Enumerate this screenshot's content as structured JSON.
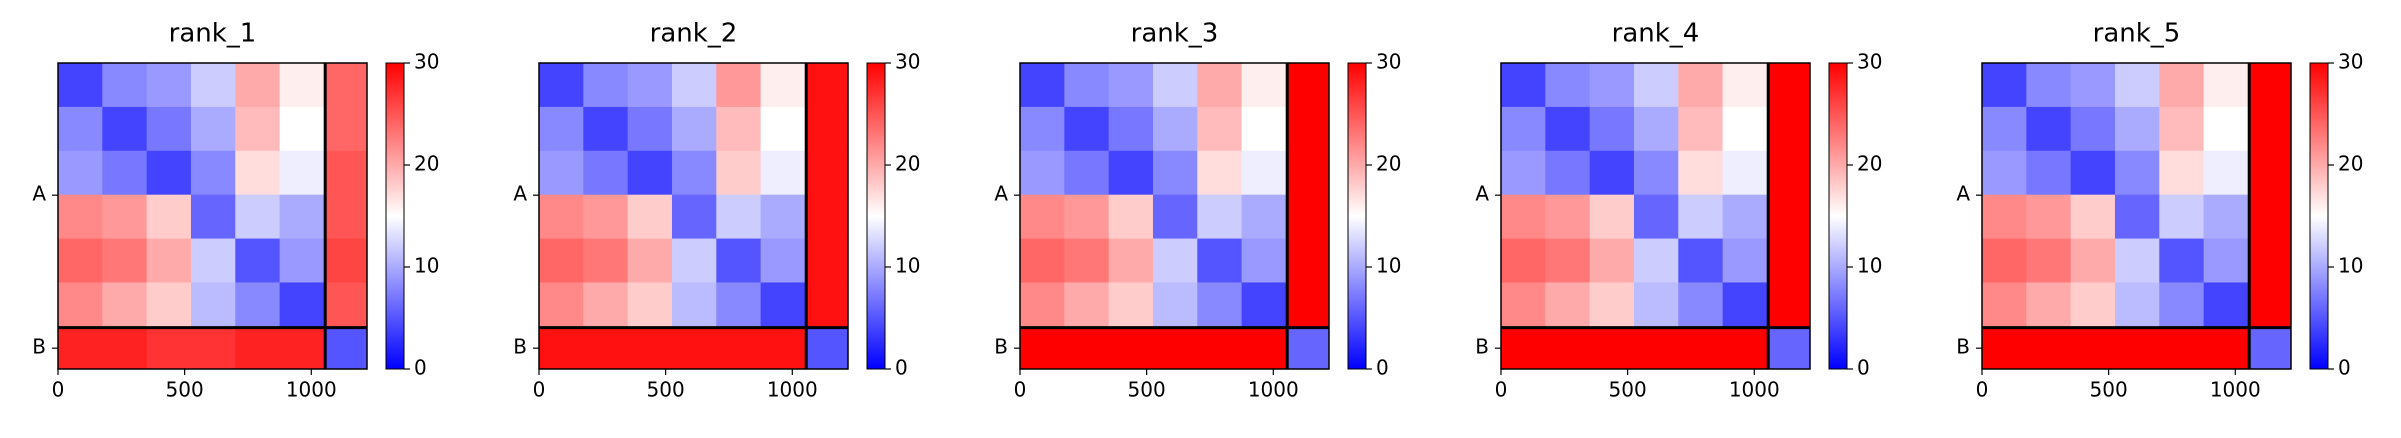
{
  "chart_data": [
    {
      "type": "heatmap",
      "title": "rank_1",
      "x_edges": [
        0,
        175,
        350,
        525,
        700,
        875,
        1055,
        1220
      ],
      "y_edges": [
        0,
        175,
        350,
        525,
        700,
        875,
        1055,
        1220
      ],
      "z": [
        [
          4,
          8,
          9,
          12,
          20,
          16,
          24
        ],
        [
          8,
          4,
          7,
          10,
          19,
          15,
          24
        ],
        [
          9,
          7,
          4,
          8,
          17,
          14,
          25
        ],
        [
          22,
          21,
          18,
          6,
          12,
          10,
          25
        ],
        [
          24,
          23,
          20,
          12,
          5,
          9,
          26
        ],
        [
          22,
          20,
          18,
          11,
          8,
          4,
          25
        ],
        [
          28,
          28,
          27,
          27,
          28,
          28,
          5
        ]
      ],
      "xlim": [
        0,
        1220
      ],
      "ylim": [
        1220,
        0
      ],
      "xticks": [
        0,
        500,
        1000
      ],
      "yticks": [
        {
          "value": 527,
          "label": "A"
        },
        {
          "value": 1137,
          "label": "B"
        }
      ],
      "chain_boundaries": [
        1055
      ],
      "colormap": "bwr",
      "clim": [
        0,
        30
      ],
      "cticks": [
        0,
        10,
        20,
        30
      ]
    },
    {
      "type": "heatmap",
      "title": "rank_2",
      "x_edges": [
        0,
        175,
        350,
        525,
        700,
        875,
        1055,
        1220
      ],
      "y_edges": [
        0,
        175,
        350,
        525,
        700,
        875,
        1055,
        1220
      ],
      "z": [
        [
          4,
          8,
          9,
          12,
          21,
          16,
          29
        ],
        [
          8,
          4,
          7,
          10,
          19,
          15,
          29
        ],
        [
          9,
          7,
          4,
          8,
          18,
          14,
          29
        ],
        [
          22,
          21,
          18,
          6,
          12,
          10,
          29
        ],
        [
          24,
          23,
          20,
          12,
          5,
          9,
          29
        ],
        [
          22,
          20,
          18,
          11,
          8,
          4,
          29
        ],
        [
          29,
          29,
          29,
          29,
          29,
          29,
          5
        ]
      ],
      "xlim": [
        0,
        1220
      ],
      "ylim": [
        1220,
        0
      ],
      "xticks": [
        0,
        500,
        1000
      ],
      "yticks": [
        {
          "value": 527,
          "label": "A"
        },
        {
          "value": 1137,
          "label": "B"
        }
      ],
      "chain_boundaries": [
        1055
      ],
      "colormap": "bwr",
      "clim": [
        0,
        30
      ],
      "cticks": [
        0,
        10,
        20,
        30
      ]
    },
    {
      "type": "heatmap",
      "title": "rank_3",
      "x_edges": [
        0,
        175,
        350,
        525,
        700,
        875,
        1055,
        1220
      ],
      "y_edges": [
        0,
        175,
        350,
        525,
        700,
        875,
        1055,
        1220
      ],
      "z": [
        [
          4,
          8,
          9,
          12,
          20,
          16,
          30
        ],
        [
          8,
          4,
          7,
          10,
          19,
          15,
          30
        ],
        [
          9,
          7,
          4,
          8,
          17,
          14,
          30
        ],
        [
          22,
          21,
          18,
          6,
          12,
          10,
          30
        ],
        [
          24,
          23,
          20,
          12,
          5,
          9,
          30
        ],
        [
          22,
          20,
          18,
          11,
          8,
          4,
          30
        ],
        [
          30,
          30,
          30,
          30,
          30,
          30,
          6
        ]
      ],
      "xlim": [
        0,
        1220
      ],
      "ylim": [
        1220,
        0
      ],
      "xticks": [
        0,
        500,
        1000
      ],
      "yticks": [
        {
          "value": 527,
          "label": "A"
        },
        {
          "value": 1137,
          "label": "B"
        }
      ],
      "chain_boundaries": [
        1055
      ],
      "colormap": "bwr",
      "clim": [
        0,
        30
      ],
      "cticks": [
        0,
        10,
        20,
        30
      ]
    },
    {
      "type": "heatmap",
      "title": "rank_4",
      "x_edges": [
        0,
        175,
        350,
        525,
        700,
        875,
        1055,
        1220
      ],
      "y_edges": [
        0,
        175,
        350,
        525,
        700,
        875,
        1055,
        1220
      ],
      "z": [
        [
          4,
          8,
          9,
          12,
          20,
          16,
          30
        ],
        [
          8,
          4,
          7,
          10,
          19,
          15,
          30
        ],
        [
          9,
          7,
          4,
          8,
          17,
          14,
          30
        ],
        [
          22,
          21,
          18,
          6,
          12,
          10,
          30
        ],
        [
          24,
          23,
          20,
          12,
          5,
          9,
          30
        ],
        [
          22,
          20,
          18,
          11,
          8,
          4,
          30
        ],
        [
          30,
          30,
          30,
          30,
          30,
          30,
          6
        ]
      ],
      "xlim": [
        0,
        1220
      ],
      "ylim": [
        1220,
        0
      ],
      "xticks": [
        0,
        500,
        1000
      ],
      "yticks": [
        {
          "value": 527,
          "label": "A"
        },
        {
          "value": 1137,
          "label": "B"
        }
      ],
      "chain_boundaries": [
        1055
      ],
      "colormap": "bwr",
      "clim": [
        0,
        30
      ],
      "cticks": [
        0,
        10,
        20,
        30
      ]
    },
    {
      "type": "heatmap",
      "title": "rank_5",
      "x_edges": [
        0,
        175,
        350,
        525,
        700,
        875,
        1055,
        1220
      ],
      "y_edges": [
        0,
        175,
        350,
        525,
        700,
        875,
        1055,
        1220
      ],
      "z": [
        [
          4,
          8,
          9,
          12,
          20,
          16,
          30
        ],
        [
          8,
          4,
          7,
          10,
          19,
          15,
          30
        ],
        [
          9,
          7,
          4,
          8,
          17,
          14,
          30
        ],
        [
          22,
          21,
          18,
          6,
          12,
          10,
          30
        ],
        [
          24,
          23,
          20,
          12,
          5,
          9,
          30
        ],
        [
          22,
          20,
          18,
          11,
          8,
          4,
          30
        ],
        [
          30,
          30,
          30,
          30,
          30,
          30,
          6
        ]
      ],
      "xlim": [
        0,
        1220
      ],
      "ylim": [
        1220,
        0
      ],
      "xticks": [
        0,
        500,
        1000
      ],
      "yticks": [
        {
          "value": 527,
          "label": "A"
        },
        {
          "value": 1137,
          "label": "B"
        }
      ],
      "chain_boundaries": [
        1055
      ],
      "colormap": "bwr",
      "clim": [
        0,
        30
      ],
      "cticks": [
        0,
        10,
        20,
        30
      ]
    }
  ]
}
